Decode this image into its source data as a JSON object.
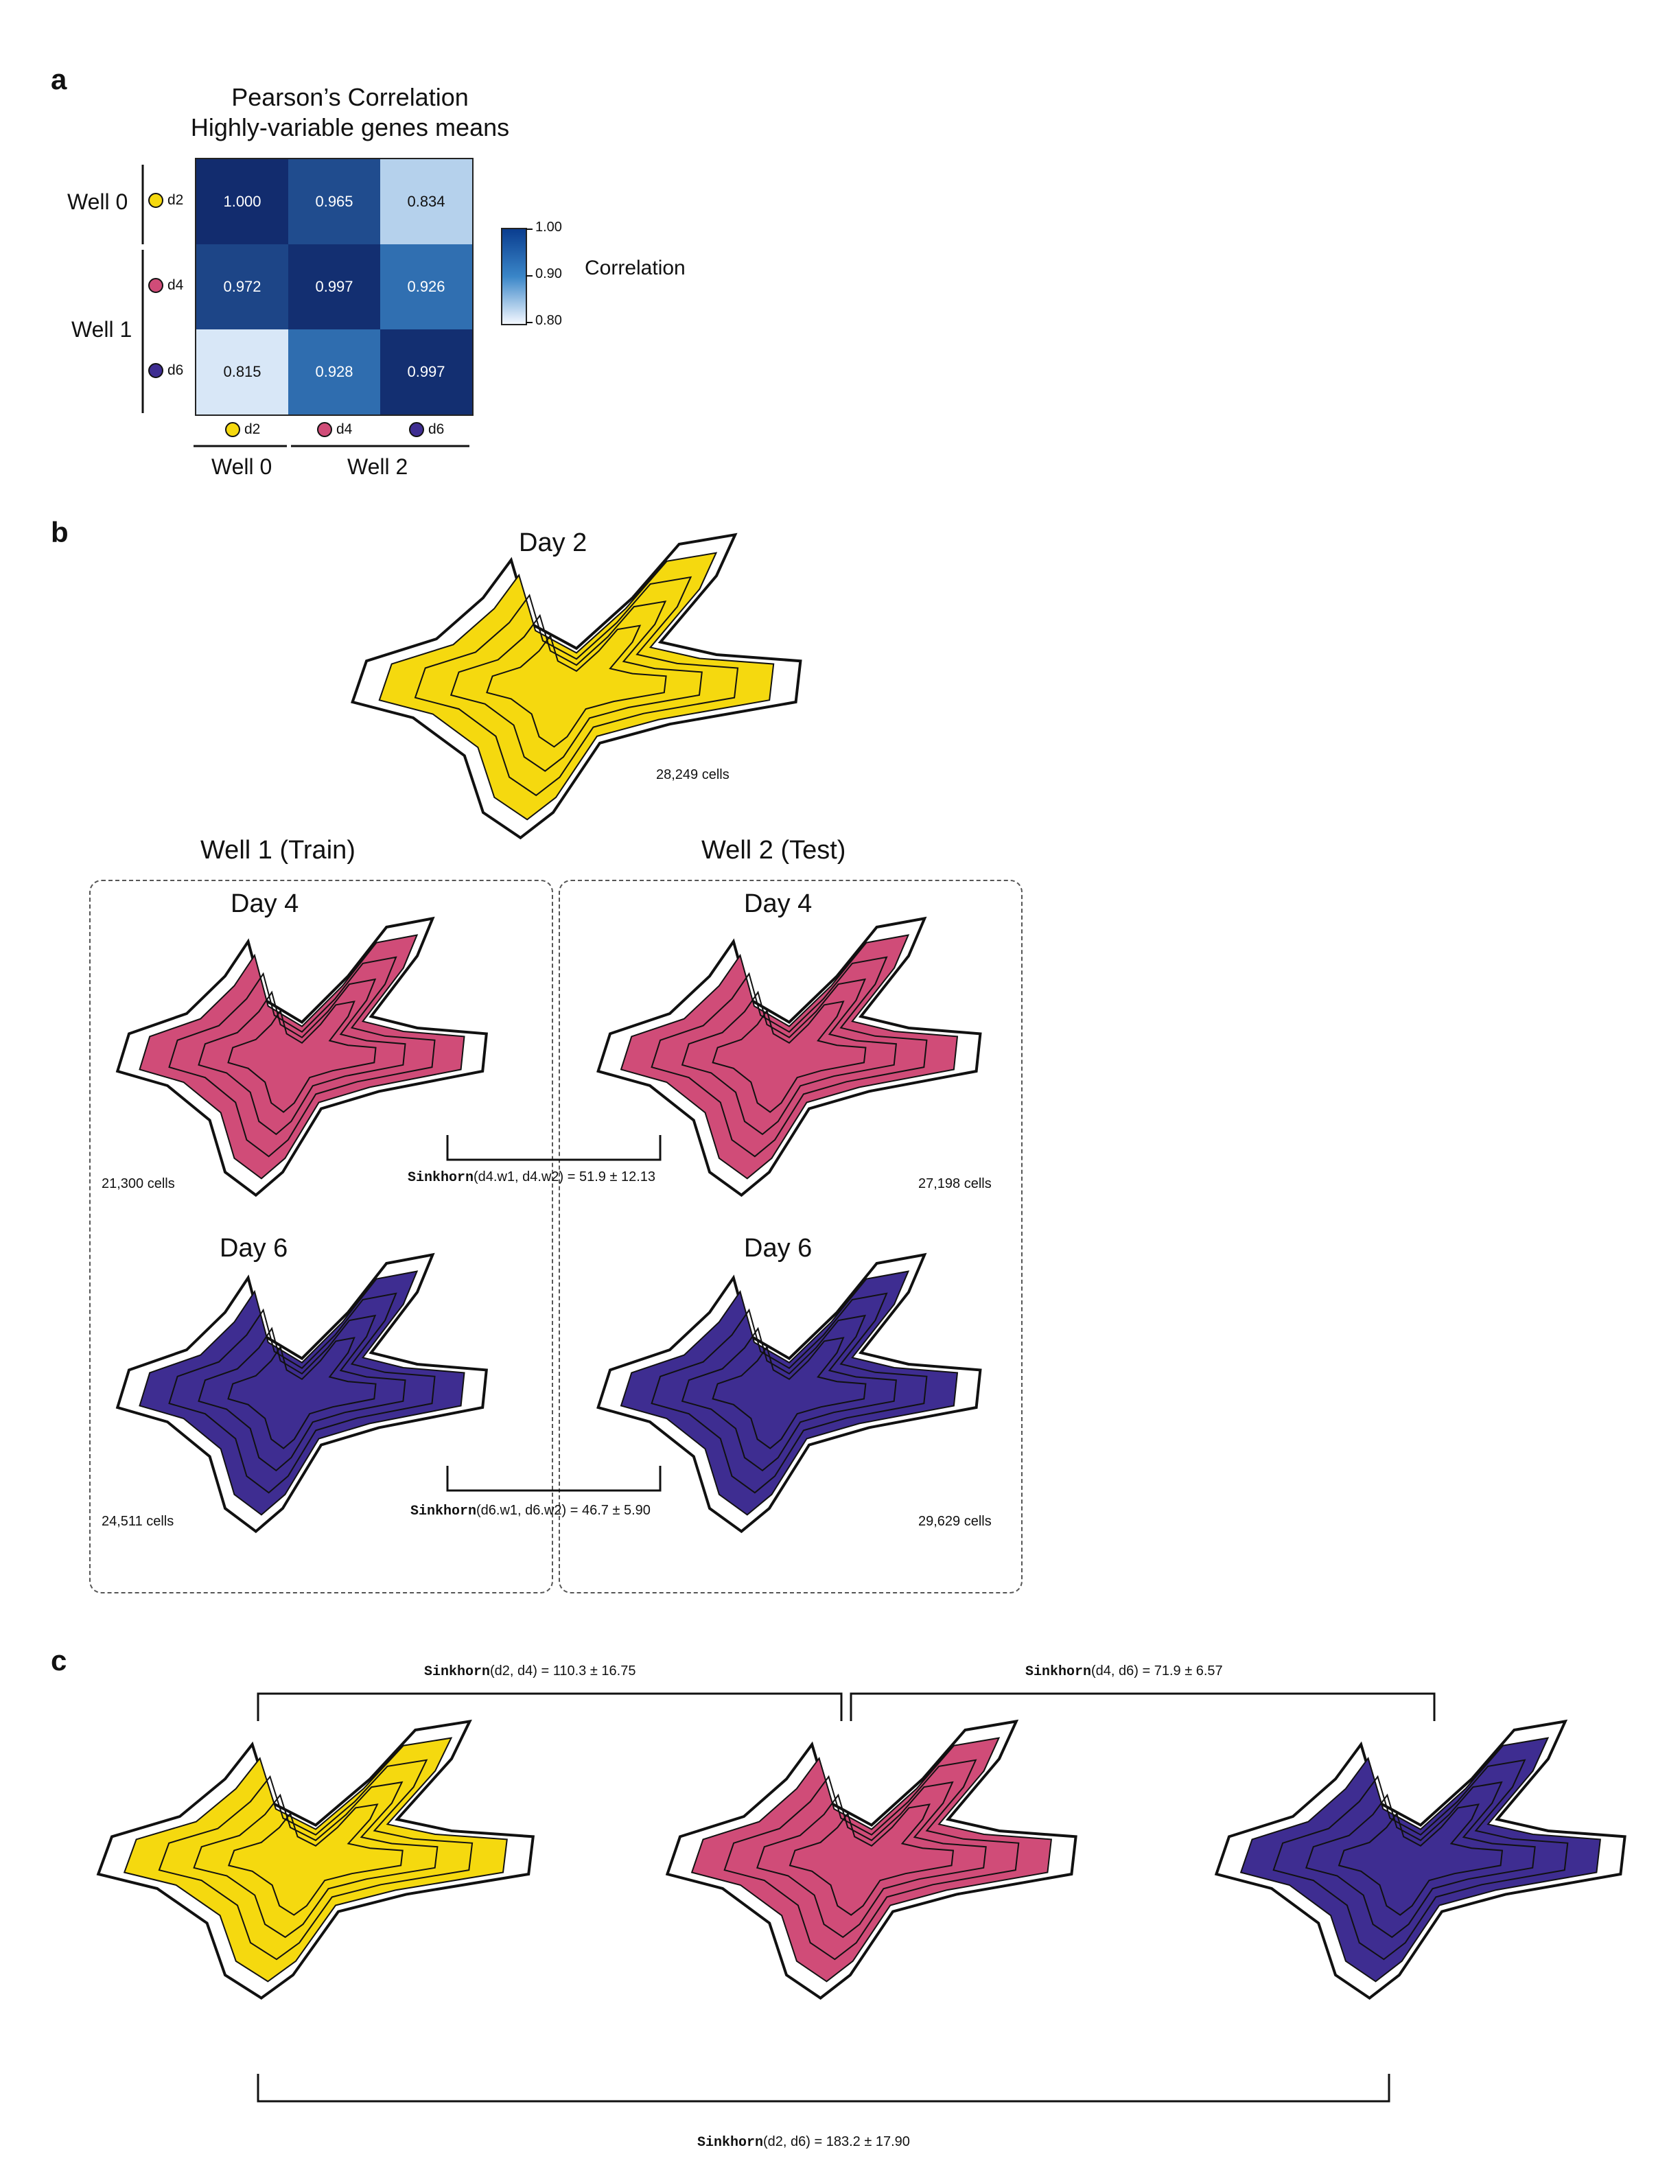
{
  "panels": {
    "a": "a",
    "b": "b",
    "c": "c"
  },
  "heatmap": {
    "title_line1": "Pearson’s Correlation",
    "title_line2": "Highly-variable genes means",
    "rows": [
      {
        "label": "d2",
        "color": "#f5d90f",
        "values": [
          "1.000",
          "0.965",
          "0.834"
        ],
        "raw": [
          1.0,
          0.965,
          0.834
        ]
      },
      {
        "label": "d4",
        "color": "#d04c78",
        "values": [
          "0.972",
          "0.997",
          "0.926"
        ],
        "raw": [
          0.972,
          0.997,
          0.926
        ]
      },
      {
        "label": "d6",
        "color": "#3e2d91",
        "values": [
          "0.815",
          "0.928",
          "0.997"
        ],
        "raw": [
          0.815,
          0.928,
          0.997
        ]
      }
    ],
    "cols": [
      {
        "label": "d2",
        "color": "#f5d90f"
      },
      {
        "label": "d4",
        "color": "#d04c78"
      },
      {
        "label": "d6",
        "color": "#3e2d91"
      }
    ],
    "row_groups": {
      "well0": "Well 0",
      "well1": "Well 1"
    },
    "col_groups": {
      "well0": "Well 0",
      "well2": "Well 2"
    },
    "colorbar": {
      "label": "Correlation",
      "ticks": [
        "1.00",
        "0.90",
        "0.80"
      ],
      "range": [
        0.8,
        1.0
      ]
    }
  },
  "panel_b": {
    "day2_title": "Day 2",
    "day2_cells": "28,249 cells",
    "well1_title": "Well 1 (Train)",
    "well2_title": "Well 2 (Test)",
    "day4": "Day 4",
    "day6": "Day 6",
    "w1_d4_cells": "21,300 cells",
    "w2_d4_cells": "27,198 cells",
    "w1_d6_cells": "24,511 cells",
    "w2_d6_cells": "29,629 cells",
    "sink_d4_fn": "Sinkhorn",
    "sink_d4_rest": "(d4.w1, d4.w2) = 51.9 ± 12.13",
    "sink_d6_fn": "Sinkhorn",
    "sink_d6_rest": "(d6.w1, d6.w2) = 46.7 ± 5.90"
  },
  "panel_c": {
    "sink_d2d4_fn": "Sinkhorn",
    "sink_d2d4_rest": "(d2, d4) = 110.3 ± 16.75",
    "sink_d4d6_fn": "Sinkhorn",
    "sink_d4d6_rest": "(d4, d6) = 71.9 ± 6.57",
    "sink_d2d6_fn": "Sinkhorn",
    "sink_d2d6_rest": "(d2, d6) = 183.2 ± 17.90"
  },
  "colors": {
    "yellow": "#f5d90f",
    "pink": "#d04c78",
    "purple": "#3e2d91"
  }
}
